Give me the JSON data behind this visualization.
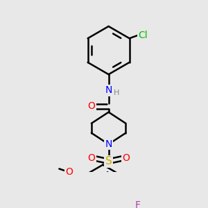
{
  "bg_color": "#e8e8e8",
  "bond_color": "#000000",
  "bond_width": 1.8,
  "atom_colors": {
    "C": "#000000",
    "N": "#0000ff",
    "O": "#ff0000",
    "S": "#ccaa00",
    "Cl": "#00bb00",
    "F": "#aa44aa",
    "H": "#888888"
  },
  "font_size": 9
}
